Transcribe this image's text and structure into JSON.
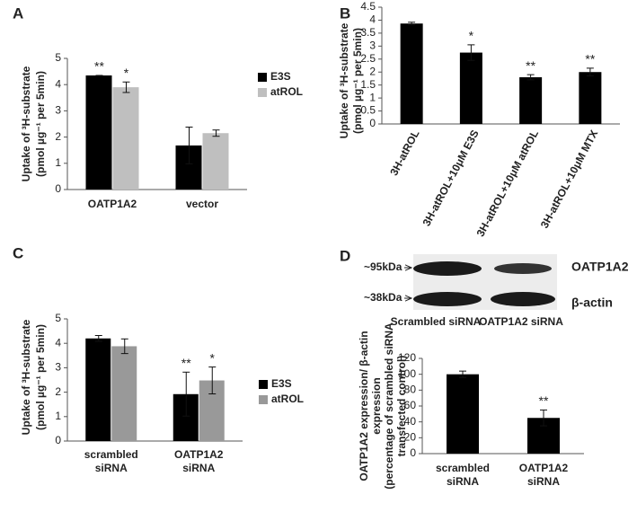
{
  "chart_data": [
    {
      "type": "bar",
      "panel": "A",
      "y_label": [
        "Uptake of ³H-substrate",
        "(pmol µg⁻¹ per 5min)"
      ],
      "categories": [
        "OATP1A2",
        "vector"
      ],
      "series": [
        {
          "name": "E3S",
          "color": "#000000",
          "values": [
            4.35,
            1.68
          ],
          "errors": [
            0,
            0.7
          ],
          "significance": [
            "**",
            null
          ]
        },
        {
          "name": "atROL",
          "color": "#bfbfbf",
          "values": [
            3.9,
            2.15
          ],
          "errors": [
            0.2,
            0.12
          ],
          "significance": [
            "*",
            null
          ]
        }
      ],
      "ylim": [
        0,
        5
      ],
      "yticks": [
        0,
        1,
        2,
        3,
        4,
        5
      ]
    },
    {
      "type": "bar",
      "panel": "B",
      "y_label": [
        "Uptake of ³H-substrate",
        "(pmol µg⁻¹ per 5min)"
      ],
      "categories": [
        "3H-atROL",
        "3H-atROL+10μM E3S",
        "3H-atROL+10μM atROL",
        "3H-atROL+10μM MTX"
      ],
      "values": [
        3.87,
        2.75,
        1.8,
        2.0
      ],
      "errors": [
        0.05,
        0.3,
        0.1,
        0.15
      ],
      "significance": [
        null,
        "*",
        "**",
        "**"
      ],
      "color": "#000000",
      "ylim": [
        0,
        4.5
      ],
      "yticks": [
        0,
        0.5,
        1,
        1.5,
        2,
        2.5,
        3,
        3.5,
        4,
        4.5
      ]
    },
    {
      "type": "bar",
      "panel": "C",
      "y_label": [
        "Uptake of ³H-substrate",
        "(pmol µg⁻¹ per 5min)"
      ],
      "categories": [
        [
          "scrambled",
          "siRNA"
        ],
        [
          "OATP1A2",
          "siRNA"
        ]
      ],
      "series": [
        {
          "name": "E3S",
          "color": "#000000",
          "values": [
            4.2,
            1.92
          ],
          "errors": [
            0.12,
            0.9
          ],
          "significance": [
            null,
            "**"
          ]
        },
        {
          "name": "atROL",
          "color": "#999999",
          "values": [
            3.88,
            2.48
          ],
          "errors": [
            0.3,
            0.55
          ],
          "significance": [
            null,
            "*"
          ]
        }
      ],
      "ylim": [
        0,
        5
      ],
      "yticks": [
        0,
        1,
        2,
        3,
        4,
        5
      ]
    },
    {
      "type": "bar",
      "panel": "D",
      "blot": {
        "markers": [
          "~95kDa",
          "~38kDa"
        ],
        "proteins": [
          "OATP1A2",
          "β-actin"
        ],
        "lanes": [
          "Scrambled siRNA",
          "OATP1A2 siRNA"
        ]
      },
      "y_label": [
        "OATP1A2 expression/ β-actin",
        "expression",
        "(percentage of scrambled siRNA",
        "transfected control)"
      ],
      "categories": [
        [
          "scrambled",
          "siRNA"
        ],
        [
          "OATP1A2",
          "siRNA"
        ]
      ],
      "values": [
        100,
        45
      ],
      "errors": [
        4,
        10
      ],
      "significance": [
        null,
        "**"
      ],
      "color": "#000000",
      "ylim": [
        0,
        120
      ],
      "yticks": [
        0,
        20,
        40,
        60,
        80,
        100,
        120
      ]
    }
  ]
}
